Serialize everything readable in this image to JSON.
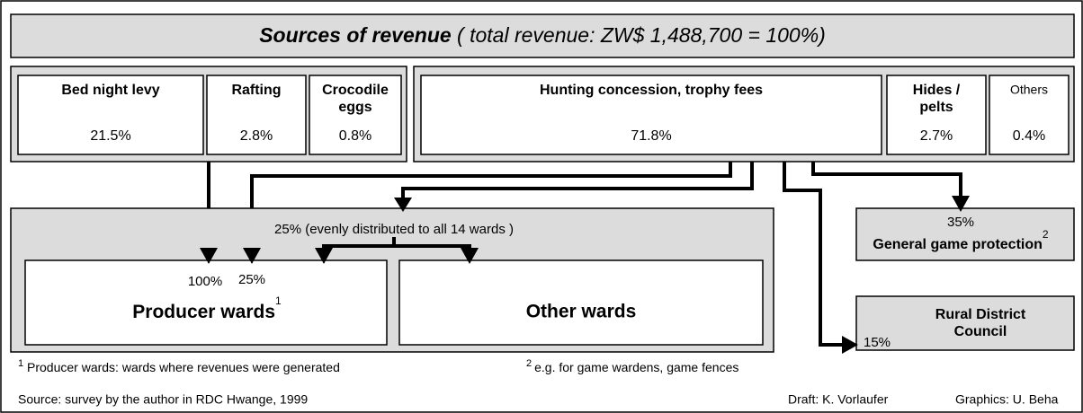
{
  "header": {
    "title_bold": "Sources of revenue",
    "title_rest": " ( total revenue: ZW$ 1,488,700 = 100%)"
  },
  "sources": [
    {
      "label": [
        "Bed night levy"
      ],
      "value": "21.5%"
    },
    {
      "label": [
        "Rafting"
      ],
      "value": "2.8%"
    },
    {
      "label": [
        "Crocodile",
        "eggs"
      ],
      "value": "0.8%"
    },
    {
      "label": [
        "Hunting concession, trophy fees"
      ],
      "value": "71.8%"
    },
    {
      "label": [
        "Hides /",
        "pelts"
      ],
      "value": "2.7%"
    },
    {
      "label": [
        "Others"
      ],
      "value": "0.4%"
    }
  ],
  "distribution": {
    "share": "25% (evenly distributed to all 14 wards )",
    "producer_wards": {
      "label": "Producer wards",
      "marker": "1",
      "shares": [
        "100%",
        "25%"
      ]
    },
    "other_wards": {
      "label": "Other wards"
    }
  },
  "general_game_protection": {
    "share": "35%",
    "label": "General game protection",
    "marker": "2"
  },
  "rural_district_council": {
    "share": "15%",
    "label": [
      "Rural District",
      "Council"
    ]
  },
  "footnotes": [
    {
      "marker": "1",
      "text": " Producer wards: wards where revenues were generated"
    },
    {
      "marker": "2",
      "text": "e.g. for game wardens, game fences"
    }
  ],
  "footer": {
    "source": "Source: survey by the author in RDC Hwange, 1999",
    "draft": "Draft: K. Vorlaufer",
    "graphics": "Graphics: U. Beha"
  }
}
